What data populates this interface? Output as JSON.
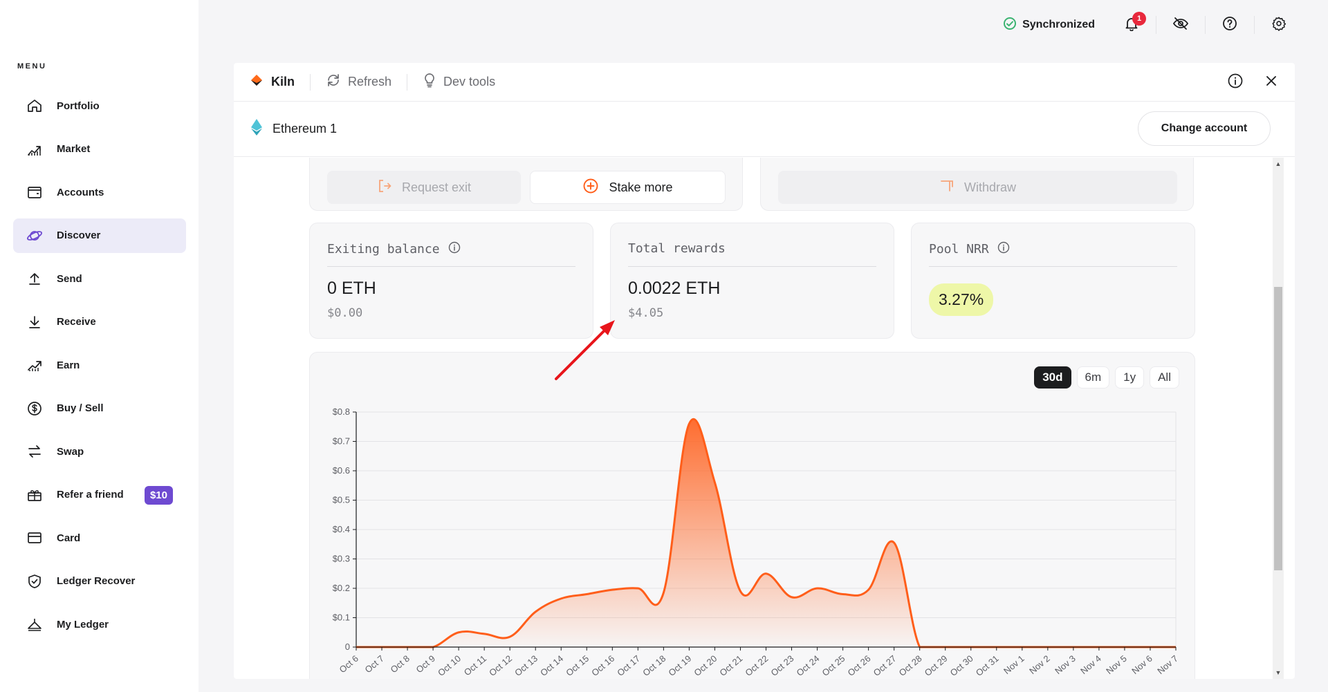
{
  "sidebar": {
    "menu_label": "MENU",
    "items": [
      {
        "label": "Portfolio",
        "icon": "home-icon"
      },
      {
        "label": "Market",
        "icon": "market-icon"
      },
      {
        "label": "Accounts",
        "icon": "wallet-icon"
      },
      {
        "label": "Discover",
        "icon": "planet-icon",
        "active": true
      },
      {
        "label": "Send",
        "icon": "upload-icon"
      },
      {
        "label": "Receive",
        "icon": "download-icon"
      },
      {
        "label": "Earn",
        "icon": "earn-icon"
      },
      {
        "label": "Buy / Sell",
        "icon": "dollar-coin-icon"
      },
      {
        "label": "Swap",
        "icon": "swap-icon"
      },
      {
        "label": "Refer a friend",
        "icon": "gift-icon",
        "badge": "$10"
      },
      {
        "label": "Card",
        "icon": "card-icon"
      },
      {
        "label": "Ledger Recover",
        "icon": "shield-icon"
      },
      {
        "label": "My Ledger",
        "icon": "ledger-device-icon"
      }
    ]
  },
  "topbar": {
    "sync_label": "Synchronized",
    "notification_count": "1"
  },
  "panel": {
    "brand": "Kiln",
    "refresh_label": "Refresh",
    "devtools_label": "Dev tools",
    "account_name": "Ethereum 1",
    "change_account_label": "Change account"
  },
  "actions": {
    "request_exit": "Request exit",
    "stake_more": "Stake more",
    "withdraw": "Withdraw"
  },
  "stats": {
    "exiting": {
      "title": "Exiting balance",
      "value": "0 ETH",
      "fiat": "$0.00"
    },
    "rewards": {
      "title": "Total rewards",
      "value": "0.0022 ETH",
      "fiat": "$4.05"
    },
    "nrr": {
      "title": "Pool NRR",
      "value": "3.27%"
    }
  },
  "range": {
    "options": [
      "30d",
      "6m",
      "1y",
      "All"
    ],
    "selected": "30d"
  },
  "colors": {
    "accent": "#ff5e1a",
    "purple": "#6e4ad1",
    "nrr_bg": "#eef7a8"
  },
  "chart_data": {
    "type": "area",
    "title": "",
    "xlabel": "",
    "ylabel": "",
    "ylim": [
      0,
      0.8
    ],
    "yticks": [
      "0",
      "$0.1",
      "$0.2",
      "$0.3",
      "$0.4",
      "$0.5",
      "$0.6",
      "$0.7",
      "$0.8"
    ],
    "x": [
      "Oct 6",
      "Oct 7",
      "Oct 8",
      "Oct 9",
      "Oct 10",
      "Oct 11",
      "Oct 12",
      "Oct 13",
      "Oct 14",
      "Oct 15",
      "Oct 16",
      "Oct 17",
      "Oct 18",
      "Oct 19",
      "Oct 20",
      "Oct 21",
      "Oct 22",
      "Oct 23",
      "Oct 24",
      "Oct 25",
      "Oct 26",
      "Oct 27",
      "Oct 28",
      "Oct 29",
      "Oct 30",
      "Oct 31",
      "Nov 1",
      "Nov 2",
      "Nov 3",
      "Nov 4",
      "Nov 5",
      "Nov 6",
      "Nov 7"
    ],
    "series": [
      {
        "values": [
          0,
          0,
          0,
          0,
          0.05,
          0.045,
          0.035,
          0.12,
          0.165,
          0.18,
          0.195,
          0.2,
          0.185,
          0.76,
          0.56,
          0.19,
          0.25,
          0.17,
          0.2,
          0.18,
          0.195,
          0.355,
          0,
          0,
          0,
          0,
          0,
          0,
          0,
          0,
          0,
          0,
          0
        ]
      }
    ],
    "grid": true
  }
}
